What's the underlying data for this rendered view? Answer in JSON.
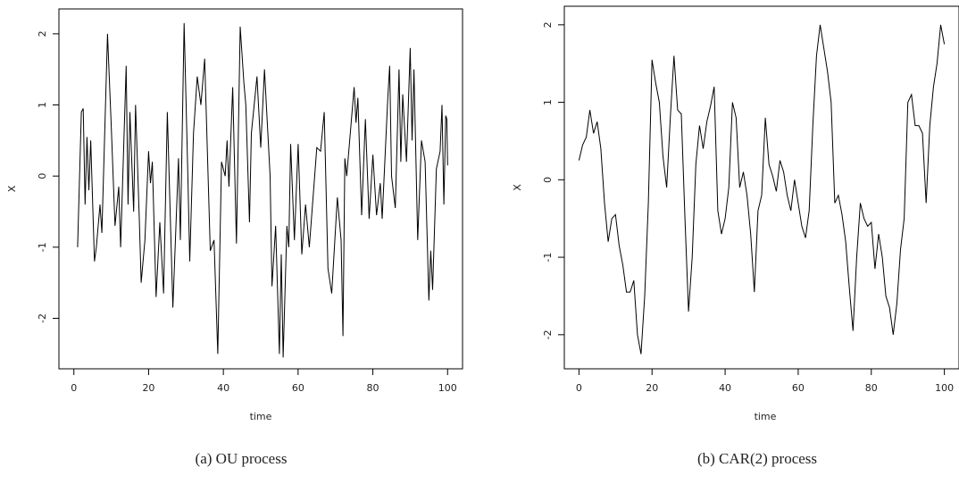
{
  "chart_data": [
    {
      "type": "line",
      "caption": "(a) OU process",
      "xlabel": "time",
      "ylabel": "X",
      "color": "#000000",
      "x": [
        1,
        2,
        2.5,
        3,
        3.5,
        4,
        4.5,
        5.5,
        6,
        7,
        7.5,
        9,
        10,
        11,
        12,
        12.5,
        14,
        14.5,
        15,
        16,
        16.5,
        17.5,
        18,
        19,
        20,
        20.5,
        21,
        22,
        23,
        24,
        25,
        26.5,
        28,
        28.5,
        29.5,
        30.5,
        31,
        32,
        33,
        34,
        35,
        36.5,
        37.5,
        38.5,
        39.5,
        40.5,
        41,
        41.5,
        42.5,
        43.5,
        44.5,
        45.5,
        46,
        47,
        47.5,
        49,
        50,
        51,
        52.5,
        53,
        54,
        55,
        55.5,
        56,
        57,
        57.5,
        58,
        59,
        60,
        61,
        62,
        63,
        65,
        66,
        67,
        68,
        69,
        70.5,
        71.5,
        72,
        72.5,
        73,
        75,
        75.5,
        76,
        77,
        78,
        79,
        80,
        81,
        82,
        82.5,
        84,
        84.5,
        85,
        86,
        87,
        87.5,
        88,
        89,
        90,
        90.5,
        91,
        92,
        93,
        94,
        95,
        95.5,
        96,
        97,
        98,
        98.5,
        99,
        99.5,
        99.8,
        100
      ],
      "values": [
        -1.0,
        0.9,
        0.95,
        -0.4,
        0.55,
        -0.2,
        0.5,
        -1.2,
        -1.0,
        -0.4,
        -0.8,
        2.0,
        0.7,
        -0.7,
        -0.15,
        -1.0,
        1.55,
        -0.4,
        0.9,
        -0.5,
        1.0,
        -0.6,
        -1.5,
        -0.9,
        0.35,
        -0.1,
        0.2,
        -1.7,
        -0.65,
        -1.65,
        0.9,
        -1.85,
        0.25,
        -0.9,
        2.15,
        0.0,
        -1.2,
        0.6,
        1.4,
        1.0,
        1.65,
        -1.05,
        -0.9,
        -2.5,
        0.2,
        0.0,
        0.5,
        -0.15,
        1.25,
        -0.95,
        2.1,
        1.3,
        1.0,
        -0.65,
        0.6,
        1.4,
        0.4,
        1.5,
        0.0,
        -1.55,
        -0.7,
        -2.5,
        -1.1,
        -2.55,
        -0.7,
        -1.0,
        0.45,
        -0.9,
        0.45,
        -1.1,
        -0.4,
        -1.0,
        0.4,
        0.35,
        0.9,
        -1.3,
        -1.65,
        -0.3,
        -0.9,
        -2.25,
        0.25,
        0.0,
        1.25,
        0.75,
        1.1,
        -0.55,
        0.8,
        -0.6,
        0.3,
        -0.55,
        -0.1,
        -0.6,
        1.1,
        1.55,
        0.0,
        -0.45,
        1.5,
        0.2,
        1.15,
        0.2,
        1.8,
        0.5,
        1.5,
        -0.9,
        0.5,
        0.2,
        -1.75,
        -1.05,
        -1.6,
        0.1,
        0.35,
        1.0,
        -0.4,
        0.85,
        0.8,
        0.15
      ],
      "xlim": [
        -4,
        104
      ],
      "ylim": [
        -2.71,
        2.35
      ],
      "xticks": [
        0,
        20,
        40,
        60,
        80,
        100
      ],
      "yticks": [
        -2,
        -1,
        0,
        1,
        2
      ]
    },
    {
      "type": "line",
      "caption": "(b) CAR(2) process",
      "xlabel": "time",
      "ylabel": "X",
      "color": "#000000",
      "x": [
        0,
        1,
        2,
        3,
        4,
        5,
        6,
        7,
        8,
        9,
        10,
        11,
        12,
        13,
        14,
        15,
        16,
        17,
        18,
        19,
        20,
        21,
        22,
        23,
        24,
        25,
        26,
        27,
        28,
        29,
        30,
        31,
        32,
        33,
        34,
        35,
        36,
        37,
        38,
        39,
        40,
        41,
        42,
        43,
        44,
        45,
        46,
        47,
        48,
        49,
        50,
        51,
        52,
        53,
        54,
        55,
        56,
        57,
        58,
        59,
        60,
        61,
        62,
        63,
        64,
        65,
        66,
        67,
        68,
        69,
        70,
        71,
        72,
        73,
        74,
        75,
        76,
        77,
        78,
        79,
        80,
        81,
        82,
        83,
        84,
        85,
        86,
        87,
        88,
        89,
        90,
        91,
        92,
        93,
        94,
        95,
        96,
        97,
        98,
        99,
        100
      ],
      "values": [
        0.25,
        0.45,
        0.55,
        0.9,
        0.6,
        0.75,
        0.4,
        -0.3,
        -0.8,
        -0.5,
        -0.45,
        -0.85,
        -1.1,
        -1.45,
        -1.45,
        -1.3,
        -2.0,
        -2.25,
        -1.5,
        -0.3,
        1.55,
        1.25,
        1.0,
        0.3,
        -0.1,
        0.8,
        1.6,
        0.9,
        0.85,
        -0.5,
        -1.7,
        -1.0,
        0.2,
        0.7,
        0.4,
        0.75,
        0.95,
        1.2,
        -0.4,
        -0.7,
        -0.5,
        -0.1,
        1.0,
        0.8,
        -0.1,
        0.1,
        -0.2,
        -0.7,
        -1.45,
        -0.4,
        -0.2,
        0.8,
        0.2,
        0.05,
        -0.15,
        0.25,
        0.1,
        -0.2,
        -0.4,
        0.0,
        -0.3,
        -0.6,
        -0.75,
        -0.4,
        0.7,
        1.6,
        2.0,
        1.7,
        1.4,
        1.0,
        -0.3,
        -0.2,
        -0.45,
        -0.8,
        -1.4,
        -1.95,
        -1.0,
        -0.3,
        -0.5,
        -0.6,
        -0.55,
        -1.15,
        -0.7,
        -1.0,
        -1.5,
        -1.65,
        -2.0,
        -1.6,
        -0.9,
        -0.5,
        1.0,
        1.1,
        0.7,
        0.7,
        0.6,
        -0.3,
        0.7,
        1.2,
        1.5,
        2.0,
        1.75
      ],
      "xlim": [
        -4,
        104
      ],
      "ylim": [
        -2.44,
        2.24
      ],
      "xticks": [
        0,
        20,
        40,
        60,
        80,
        100
      ],
      "yticks": [
        -2,
        -1,
        0,
        1,
        2
      ]
    }
  ]
}
